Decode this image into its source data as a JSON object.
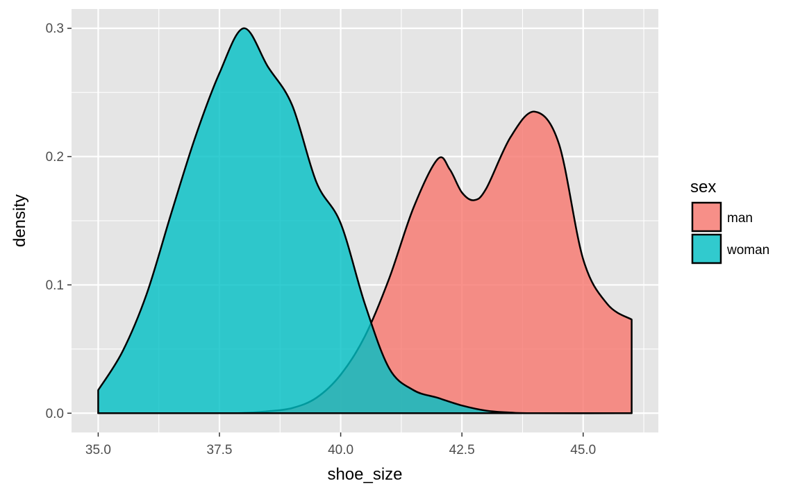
{
  "chart_data": {
    "type": "area",
    "subtype": "density",
    "title": "",
    "xlabel": "shoe_size",
    "ylabel": "density",
    "xlim": [
      34.45,
      46.55
    ],
    "ylim": [
      -0.015,
      0.315
    ],
    "x_ticks": [
      35.0,
      37.5,
      40.0,
      42.5,
      45.0
    ],
    "x_tick_labels": [
      "35.0",
      "37.5",
      "40.0",
      "42.5",
      "45.0"
    ],
    "x_minor_ticks": [
      36.25,
      38.75,
      41.25,
      43.75,
      46.25
    ],
    "y_ticks": [
      0.0,
      0.1,
      0.2,
      0.3
    ],
    "y_tick_labels": [
      "0.0",
      "0.1",
      "0.2",
      "0.3"
    ],
    "y_minor_ticks": [
      0.05,
      0.15,
      0.25
    ],
    "grid": true,
    "panel_background": "#e5e5e5",
    "grid_color": "#ffffff",
    "legend": {
      "title": "sex",
      "placement": "right"
    },
    "series": [
      {
        "name": "man",
        "color": "#f8766d",
        "points": [
          [
            35.0,
            0.0
          ],
          [
            37.5,
            0.0
          ],
          [
            38.0,
            0.0002
          ],
          [
            38.5,
            0.0015
          ],
          [
            39.0,
            0.004
          ],
          [
            39.5,
            0.012
          ],
          [
            40.0,
            0.03
          ],
          [
            40.5,
            0.06
          ],
          [
            41.0,
            0.105
          ],
          [
            41.5,
            0.16
          ],
          [
            42.0,
            0.198
          ],
          [
            42.25,
            0.19
          ],
          [
            42.5,
            0.172
          ],
          [
            42.75,
            0.166
          ],
          [
            43.0,
            0.175
          ],
          [
            43.5,
            0.215
          ],
          [
            44.0,
            0.235
          ],
          [
            44.5,
            0.21
          ],
          [
            45.0,
            0.12
          ],
          [
            45.5,
            0.085
          ],
          [
            46.0,
            0.073
          ]
        ]
      },
      {
        "name": "woman",
        "color": "#00bfc4",
        "points": [
          [
            35.0,
            0.018
          ],
          [
            35.5,
            0.048
          ],
          [
            36.0,
            0.093
          ],
          [
            36.5,
            0.155
          ],
          [
            37.0,
            0.215
          ],
          [
            37.5,
            0.265
          ],
          [
            38.0,
            0.3
          ],
          [
            38.5,
            0.27
          ],
          [
            39.0,
            0.24
          ],
          [
            39.5,
            0.18
          ],
          [
            40.0,
            0.148
          ],
          [
            40.5,
            0.085
          ],
          [
            41.0,
            0.035
          ],
          [
            41.5,
            0.018
          ],
          [
            42.0,
            0.012
          ],
          [
            42.5,
            0.006
          ],
          [
            43.0,
            0.002
          ],
          [
            43.5,
            0.0005
          ],
          [
            44.0,
            0.0
          ],
          [
            46.0,
            0.0
          ]
        ]
      }
    ]
  }
}
